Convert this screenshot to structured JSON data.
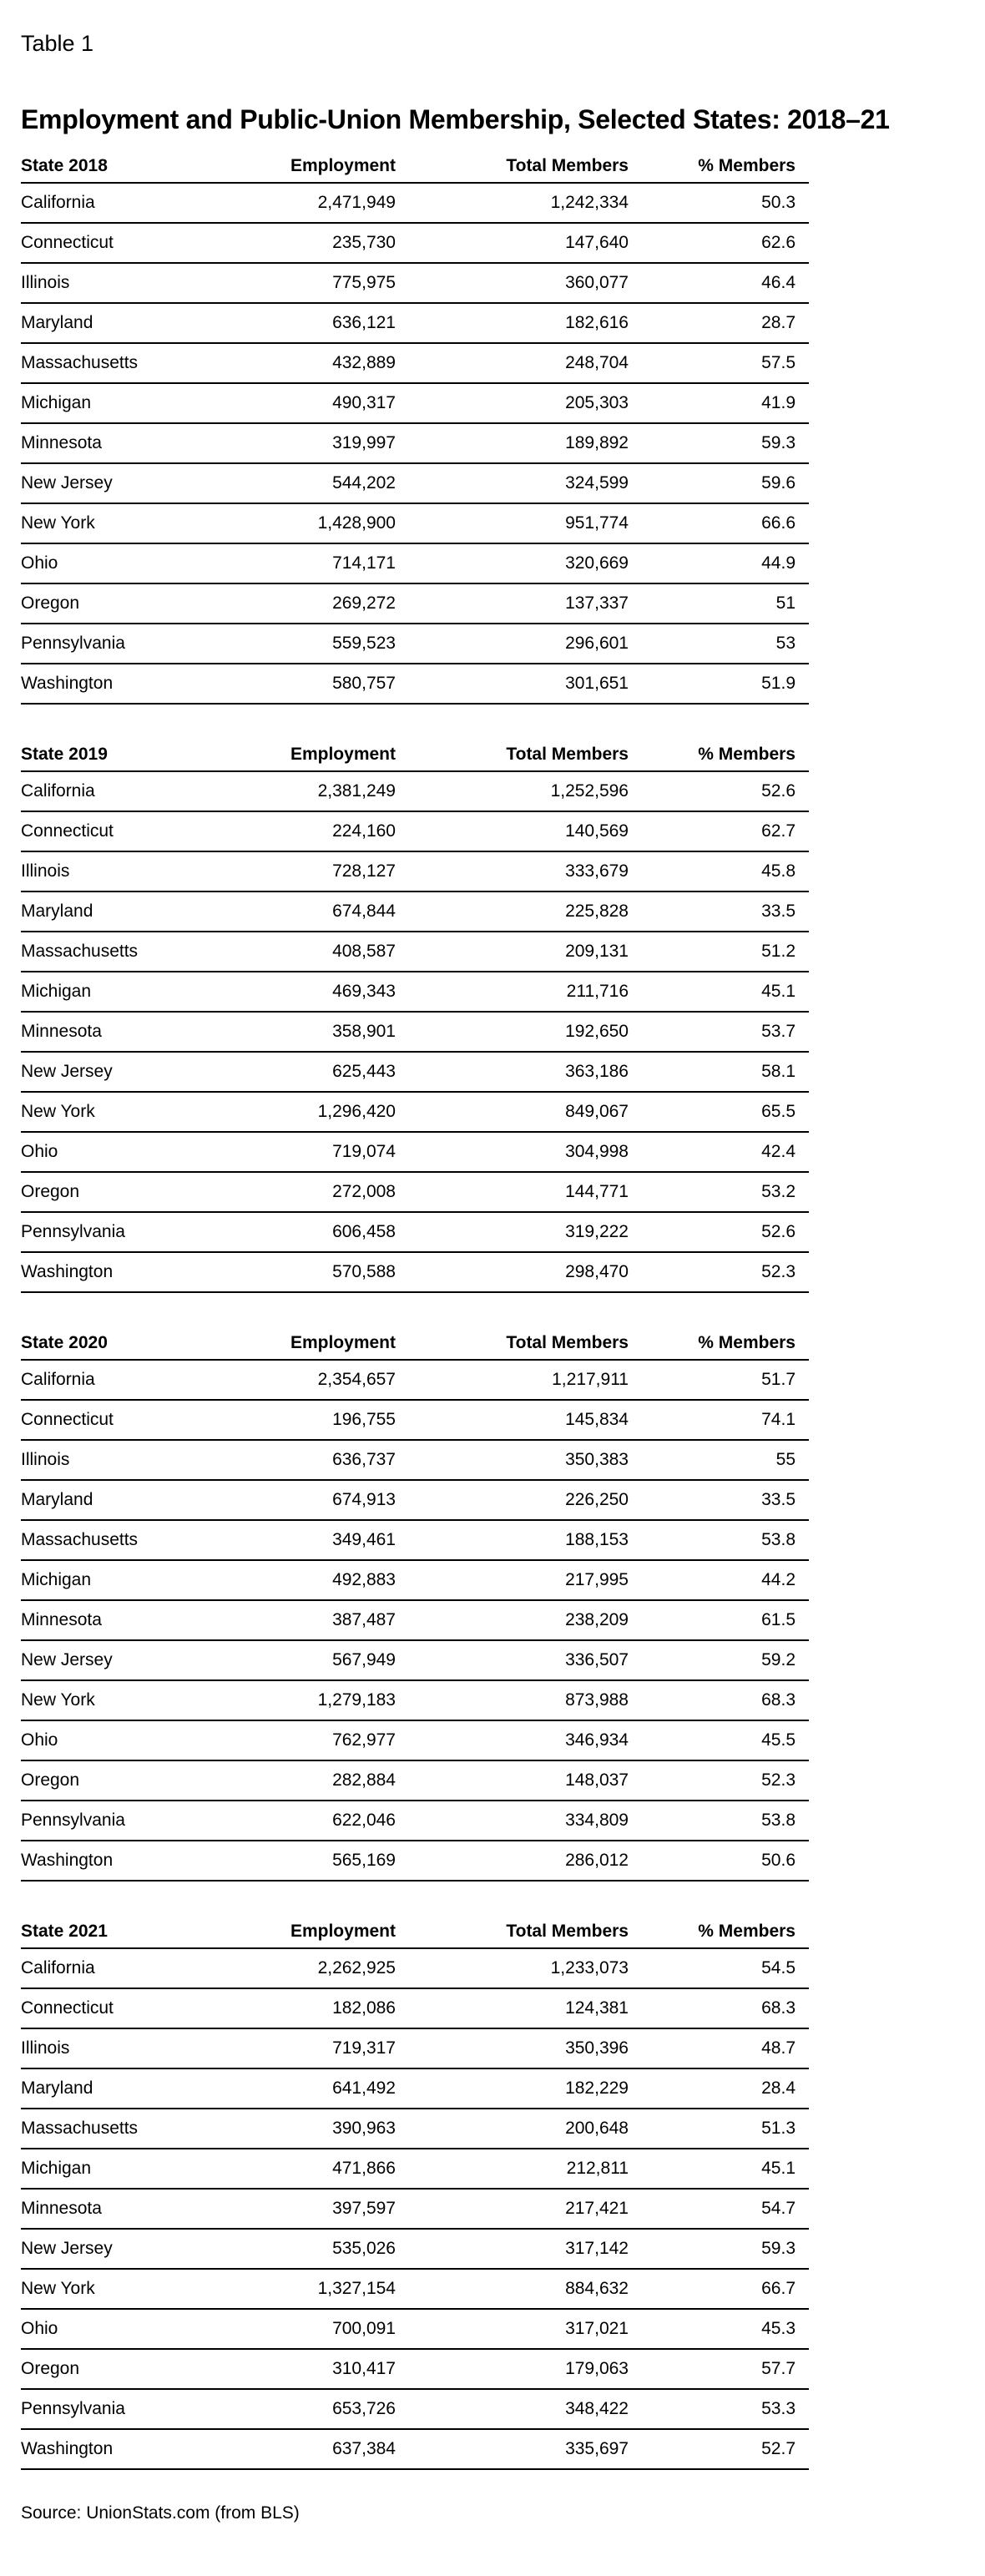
{
  "page": {
    "label": "Table 1",
    "title": "Employment and Public-Union Membership, Selected States: 2018–21",
    "source": "Source: UnionStats.com (from BLS)"
  },
  "columns": [
    "Employment",
    "Total Members",
    "% Members"
  ],
  "tables": [
    {
      "state_header": "State 2018",
      "rows": [
        [
          "California",
          "2,471,949",
          "1,242,334",
          "50.3"
        ],
        [
          "Connecticut",
          "235,730",
          "147,640",
          "62.6"
        ],
        [
          "Illinois",
          "775,975",
          "360,077",
          "46.4"
        ],
        [
          "Maryland",
          "636,121",
          "182,616",
          "28.7"
        ],
        [
          "Massachusetts",
          "432,889",
          "248,704",
          "57.5"
        ],
        [
          "Michigan",
          "490,317",
          "205,303",
          "41.9"
        ],
        [
          "Minnesota",
          "319,997",
          "189,892",
          "59.3"
        ],
        [
          "New Jersey",
          "544,202",
          "324,599",
          "59.6"
        ],
        [
          "New York",
          "1,428,900",
          "951,774",
          "66.6"
        ],
        [
          "Ohio",
          "714,171",
          "320,669",
          "44.9"
        ],
        [
          "Oregon",
          "269,272",
          "137,337",
          "51"
        ],
        [
          "Pennsylvania",
          "559,523",
          "296,601",
          "53"
        ],
        [
          "Washington",
          "580,757",
          "301,651",
          "51.9"
        ]
      ]
    },
    {
      "state_header": "State 2019",
      "rows": [
        [
          "California",
          "2,381,249",
          "1,252,596",
          "52.6"
        ],
        [
          "Connecticut",
          "224,160",
          "140,569",
          "62.7"
        ],
        [
          "Illinois",
          "728,127",
          "333,679",
          "45.8"
        ],
        [
          "Maryland",
          "674,844",
          "225,828",
          "33.5"
        ],
        [
          "Massachusetts",
          "408,587",
          "209,131",
          "51.2"
        ],
        [
          "Michigan",
          "469,343",
          "211,716",
          "45.1"
        ],
        [
          "Minnesota",
          "358,901",
          "192,650",
          "53.7"
        ],
        [
          "New Jersey",
          "625,443",
          "363,186",
          "58.1"
        ],
        [
          "New York",
          "1,296,420",
          "849,067",
          "65.5"
        ],
        [
          "Ohio",
          "719,074",
          "304,998",
          "42.4"
        ],
        [
          "Oregon",
          "272,008",
          "144,771",
          "53.2"
        ],
        [
          "Pennsylvania",
          "606,458",
          "319,222",
          "52.6"
        ],
        [
          "Washington",
          "570,588",
          "298,470",
          "52.3"
        ]
      ]
    },
    {
      "state_header": "State 2020",
      "rows": [
        [
          "California",
          "2,354,657",
          "1,217,911",
          "51.7"
        ],
        [
          "Connecticut",
          "196,755",
          "145,834",
          "74.1"
        ],
        [
          "Illinois",
          "636,737",
          "350,383",
          "55"
        ],
        [
          "Maryland",
          "674,913",
          "226,250",
          "33.5"
        ],
        [
          "Massachusetts",
          "349,461",
          "188,153",
          "53.8"
        ],
        [
          "Michigan",
          "492,883",
          "217,995",
          "44.2"
        ],
        [
          "Minnesota",
          "387,487",
          "238,209",
          "61.5"
        ],
        [
          "New Jersey",
          "567,949",
          "336,507",
          "59.2"
        ],
        [
          "New York",
          "1,279,183",
          "873,988",
          "68.3"
        ],
        [
          "Ohio",
          "762,977",
          "346,934",
          "45.5"
        ],
        [
          "Oregon",
          "282,884",
          "148,037",
          "52.3"
        ],
        [
          "Pennsylvania",
          "622,046",
          "334,809",
          "53.8"
        ],
        [
          "Washington",
          "565,169",
          "286,012",
          "50.6"
        ]
      ]
    },
    {
      "state_header": "State 2021",
      "rows": [
        [
          "California",
          "2,262,925",
          "1,233,073",
          "54.5"
        ],
        [
          "Connecticut",
          "182,086",
          "124,381",
          "68.3"
        ],
        [
          "Illinois",
          "719,317",
          "350,396",
          "48.7"
        ],
        [
          "Maryland",
          "641,492",
          "182,229",
          "28.4"
        ],
        [
          "Massachusetts",
          "390,963",
          "200,648",
          "51.3"
        ],
        [
          "Michigan",
          "471,866",
          "212,811",
          "45.1"
        ],
        [
          "Minnesota",
          "397,597",
          "217,421",
          "54.7"
        ],
        [
          "New Jersey",
          "535,026",
          "317,142",
          "59.3"
        ],
        [
          "New York",
          "1,327,154",
          "884,632",
          "66.7"
        ],
        [
          "Ohio",
          "700,091",
          "317,021",
          "45.3"
        ],
        [
          "Oregon",
          "310,417",
          "179,063",
          "57.7"
        ],
        [
          "Pennsylvania",
          "653,726",
          "348,422",
          "53.3"
        ],
        [
          "Washington",
          "637,384",
          "335,697",
          "52.7"
        ]
      ]
    }
  ]
}
